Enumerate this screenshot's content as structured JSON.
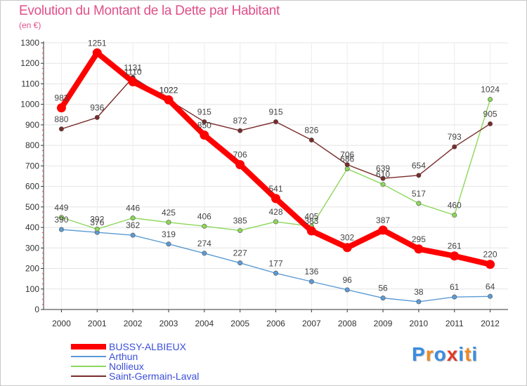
{
  "header": {
    "title": "Evolution du Montant de la Dette par Habitant",
    "subtitle": "(en €)"
  },
  "logo": {
    "text": "Proxiti",
    "letter_colors": [
      "#3a8ee0",
      "#f08a24",
      "#3a8ee0",
      "#e03a2a",
      "#3a8ee0",
      "#f08a24",
      "#3a8ee0"
    ]
  },
  "chart_data": {
    "type": "line",
    "title": "Evolution du Montant de la Dette par Habitant",
    "ylabel": "(en €)",
    "xlabel": "",
    "ylim": [
      0,
      1300
    ],
    "yticks": [
      0,
      100,
      200,
      300,
      400,
      500,
      600,
      700,
      800,
      900,
      1000,
      1100,
      1200,
      1300
    ],
    "grid": true,
    "legend_position": "bottom-left",
    "x": [
      "2000",
      "2001",
      "2002",
      "2003",
      "2004",
      "2005",
      "2006",
      "2007",
      "2008",
      "2009",
      "2010",
      "2011",
      "2012"
    ],
    "series": [
      {
        "name": "BUSSY-ALBIEUX",
        "color": "#ff0000",
        "emphasis": true,
        "values": [
          983,
          1251,
          1110,
          1022,
          850,
          706,
          541,
          383,
          302,
          387,
          295,
          261,
          220
        ]
      },
      {
        "name": "Arthun",
        "color": "#5b9bd5",
        "values": [
          390,
          376,
          362,
          319,
          274,
          227,
          177,
          136,
          96,
          56,
          38,
          61,
          64
        ]
      },
      {
        "name": "Nollieux",
        "color": "#8cd75a",
        "values": [
          449,
          392,
          446,
          425,
          406,
          385,
          428,
          405,
          686,
          610,
          517,
          460,
          1024
        ]
      },
      {
        "name": "Saint-Germain-Laval",
        "color": "#7a2a2a",
        "values": [
          880,
          936,
          1131,
          1022,
          915,
          872,
          915,
          826,
          706,
          639,
          654,
          793,
          905
        ]
      }
    ]
  }
}
